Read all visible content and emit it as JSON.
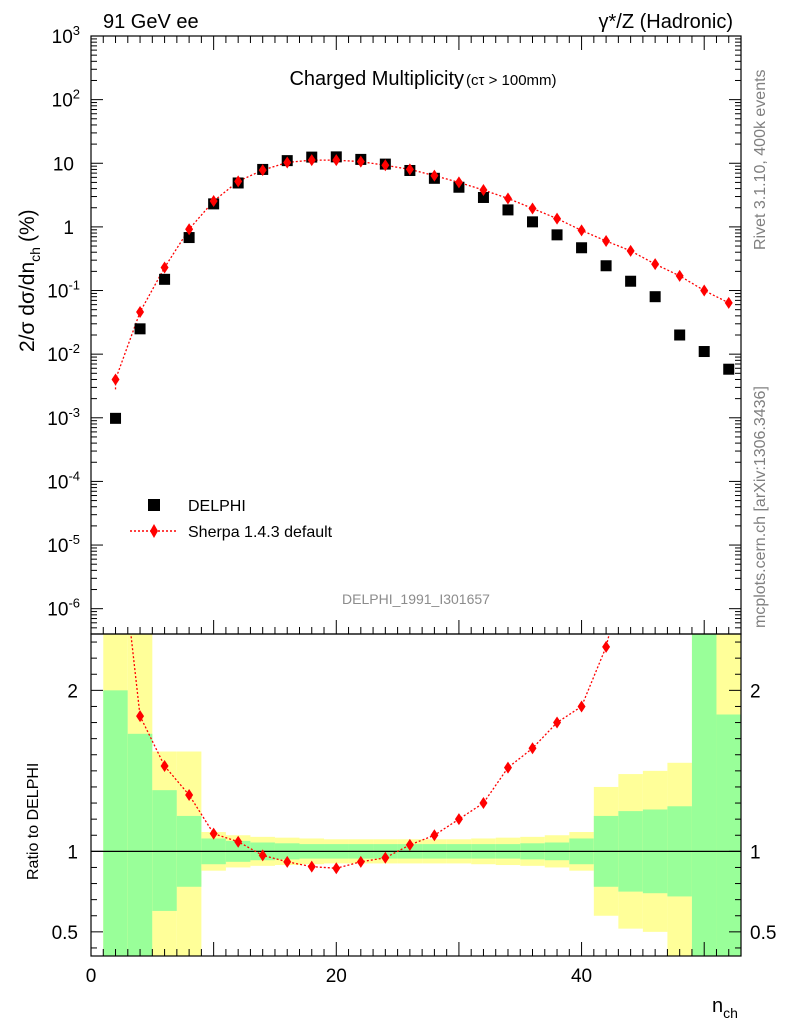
{
  "header": {
    "left": "91 GeV ee",
    "right": "γ*/Z (Hadronic)"
  },
  "side_labels": {
    "rivet": "Rivet 3.1.10,  400k events",
    "mcplots": "mcplots.cern.ch [arXiv:1306.3436]"
  },
  "colors": {
    "data": "#000000",
    "mc": "#ff0000",
    "band_inner": "#99ff99",
    "band_outer": "#ffff99"
  },
  "chart_data": [
    {
      "type": "scatter",
      "title": "Charged Multiplicity",
      "title_suffix": "(cτ > 100mm)",
      "analysis_tag": "DELPHI_1991_I301657",
      "ylabel": "2/σ dσ/dn",
      "ylabel_sub": "ch",
      "ylabel_unit": "(%)",
      "xlim": [
        0,
        53
      ],
      "ylim": [
        4e-07,
        1000
      ],
      "yscale": "log",
      "ytick_labels": [
        {
          "base": "10",
          "exp": "-6",
          "value": 1e-06
        },
        {
          "base": "10",
          "exp": "-5",
          "value": 1e-05
        },
        {
          "base": "10",
          "exp": "-4",
          "value": 0.0001
        },
        {
          "base": "10",
          "exp": "-3",
          "value": 0.001
        },
        {
          "base": "10",
          "exp": "-2",
          "value": 0.01
        },
        {
          "base": "10",
          "exp": "-1",
          "value": 0.1
        },
        {
          "base": "1",
          "exp": "",
          "value": 1
        },
        {
          "base": "10",
          "exp": "",
          "value": 10
        },
        {
          "base": "10",
          "exp": "2",
          "value": 100
        },
        {
          "base": "10",
          "exp": "3",
          "value": 1000
        }
      ],
      "legend": {
        "position": "bottom-left"
      },
      "series": [
        {
          "name": "DELPHI",
          "marker": "square",
          "x": [
            2,
            4,
            6,
            8,
            10,
            12,
            14,
            16,
            18,
            20,
            22,
            24,
            26,
            28,
            30,
            32,
            34,
            36,
            38,
            40,
            42,
            44,
            46,
            48,
            50,
            52
          ],
          "y": [
            0.00098,
            0.025,
            0.15,
            0.68,
            2.3,
            4.9,
            8.0,
            11.0,
            12.5,
            12.6,
            11.5,
            9.7,
            7.7,
            5.8,
            4.2,
            2.9,
            1.85,
            1.2,
            0.75,
            0.47,
            0.245,
            0.14,
            0.08,
            0.02,
            0.011,
            0.0058
          ]
        },
        {
          "name": "Sherpa 1.4.3 default",
          "marker": "diamond",
          "line": "dotted",
          "x": [
            2,
            4,
            6,
            8,
            10,
            12,
            14,
            16,
            18,
            20,
            22,
            24,
            26,
            28,
            30,
            32,
            34,
            36,
            38,
            40,
            42,
            44,
            46,
            48,
            50,
            52
          ],
          "y": [
            0.004,
            0.046,
            0.23,
            0.92,
            2.55,
            5.2,
            7.8,
            10.3,
            11.2,
            11.2,
            10.6,
            9.3,
            8.0,
            6.4,
            5.0,
            3.8,
            2.8,
            1.95,
            1.35,
            0.88,
            0.6,
            0.42,
            0.26,
            0.17,
            0.1,
            0.064
          ]
        }
      ]
    },
    {
      "type": "line",
      "ylabel": "Ratio to DELPHI",
      "xlabel": "n",
      "xlabel_sub": "ch",
      "xlim": [
        0,
        53
      ],
      "ylim": [
        0.35,
        2.35
      ],
      "xticks": [
        0,
        20,
        40
      ],
      "yticks": [
        0.5,
        1,
        2
      ],
      "reference_line": 1,
      "bands": {
        "x_edges": [
          1,
          3,
          5,
          7,
          9,
          11,
          13,
          15,
          17,
          19,
          21,
          23,
          25,
          27,
          29,
          31,
          33,
          35,
          37,
          39,
          41,
          43,
          45,
          47,
          49,
          51,
          53
        ],
        "inner_low": [
          0.35,
          0.35,
          0.63,
          0.78,
          0.92,
          0.935,
          0.945,
          0.95,
          0.955,
          0.955,
          0.955,
          0.955,
          0.955,
          0.955,
          0.955,
          0.955,
          0.955,
          0.95,
          0.945,
          0.92,
          0.78,
          0.75,
          0.74,
          0.72,
          0.35,
          0.35
        ],
        "inner_high": [
          2.0,
          1.73,
          1.38,
          1.22,
          1.08,
          1.065,
          1.055,
          1.05,
          1.045,
          1.045,
          1.045,
          1.045,
          1.045,
          1.045,
          1.045,
          1.045,
          1.045,
          1.05,
          1.055,
          1.08,
          1.22,
          1.25,
          1.26,
          1.28,
          2.35,
          1.85
        ],
        "outer_low": [
          0.35,
          0.35,
          0.35,
          0.35,
          0.88,
          0.9,
          0.91,
          0.915,
          0.92,
          0.925,
          0.925,
          0.925,
          0.925,
          0.925,
          0.925,
          0.92,
          0.915,
          0.91,
          0.9,
          0.88,
          0.6,
          0.52,
          0.5,
          0.35,
          0.35,
          0.35
        ],
        "outer_high": [
          2.35,
          2.35,
          1.62,
          1.62,
          1.12,
          1.1,
          1.09,
          1.085,
          1.08,
          1.075,
          1.075,
          1.075,
          1.075,
          1.075,
          1.075,
          1.08,
          1.085,
          1.09,
          1.1,
          1.12,
          1.4,
          1.48,
          1.5,
          1.55,
          2.35,
          2.35
        ]
      },
      "series": [
        {
          "name": "Sherpa 1.4.3 default",
          "marker": "diamond",
          "x": [
            4,
            6,
            8,
            10,
            12,
            14,
            16,
            18,
            20,
            22,
            24,
            26,
            28,
            30,
            32,
            34,
            36,
            38,
            40,
            42
          ],
          "y": [
            1.84,
            1.53,
            1.35,
            1.11,
            1.06,
            0.975,
            0.935,
            0.905,
            0.895,
            0.935,
            0.96,
            1.04,
            1.1,
            1.2,
            1.3,
            1.52,
            1.64,
            1.8,
            1.9,
            2.27
          ]
        }
      ]
    }
  ]
}
